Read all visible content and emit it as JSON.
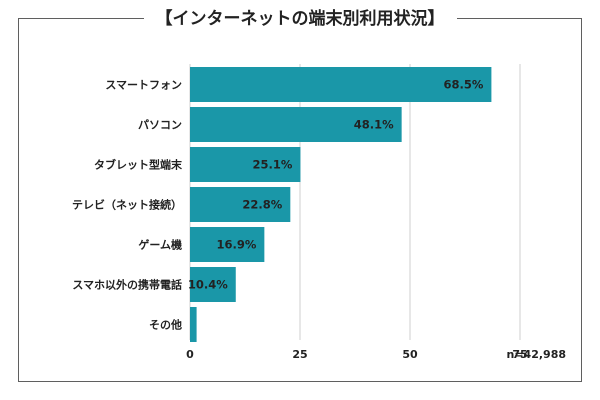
{
  "title": "【インターネットの端末別利用状況】",
  "sample_note": "n=42,988",
  "colors": {
    "bar": "#1a97a8",
    "grid": "#cfcfcf",
    "frame": "#5f5f5f"
  },
  "chart_data": {
    "type": "bar",
    "orientation": "horizontal",
    "title": "【インターネットの端末別利用状況】",
    "categories": [
      "スマートフォン",
      "パソコン",
      "タブレット型端末",
      "テレビ（ネット接続）",
      "ゲーム機",
      "スマホ以外の携帯電話",
      "その他"
    ],
    "values": [
      68.5,
      48.1,
      25.1,
      22.8,
      16.9,
      10.4,
      1.5
    ],
    "value_labels": [
      "68.5%",
      "48.1%",
      "25.1%",
      "22.8%",
      "16.9%",
      "10.4%",
      ""
    ],
    "xlim": [
      0,
      75
    ],
    "xticks": [
      "0",
      "25",
      "50",
      "75"
    ],
    "grid": true,
    "note": "n=42,988"
  }
}
